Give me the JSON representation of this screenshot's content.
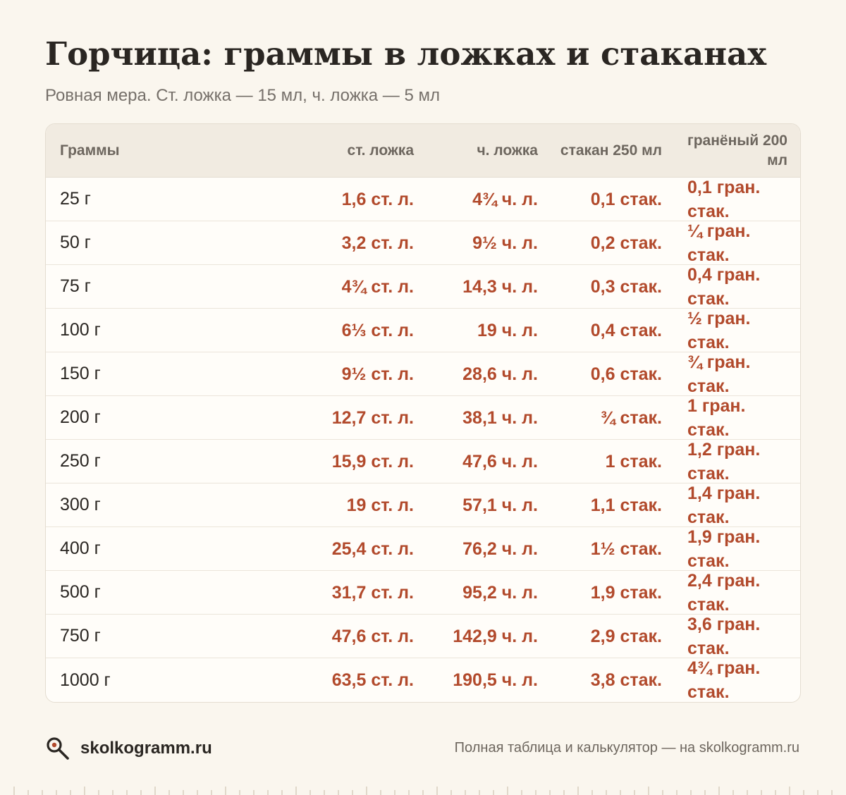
{
  "title": "Горчица: граммы в ложках и стаканах",
  "subtitle": "Ровная мера. Ст. ложка — 15 мл, ч. ложка — 5 мл",
  "table": {
    "headers": [
      "Граммы",
      "ст. ложка",
      "ч. ложка",
      "стакан 250 мл",
      "гранёный 200 мл"
    ],
    "rows": [
      [
        "25 г",
        "1,6 ст. л.",
        "4¾ ч. л.",
        "0,1 стак.",
        "0,1 гран. стак."
      ],
      [
        "50 г",
        "3,2 ст. л.",
        "9½ ч. л.",
        "0,2 стак.",
        "¼ гран. стак."
      ],
      [
        "75 г",
        "4¾ ст. л.",
        "14,3 ч. л.",
        "0,3 стак.",
        "0,4 гран. стак."
      ],
      [
        "100 г",
        "6⅓ ст. л.",
        "19 ч. л.",
        "0,4 стак.",
        "½ гран. стак."
      ],
      [
        "150 г",
        "9½ ст. л.",
        "28,6 ч. л.",
        "0,6 стак.",
        "¾ гран. стак."
      ],
      [
        "200 г",
        "12,7 ст. л.",
        "38,1 ч. л.",
        "¾ стак.",
        "1 гран. стак."
      ],
      [
        "250 г",
        "15,9 ст. л.",
        "47,6 ч. л.",
        "1 стак.",
        "1,2 гран. стак."
      ],
      [
        "300 г",
        "19 ст. л.",
        "57,1 ч. л.",
        "1,1 стак.",
        "1,4 гран. стак."
      ],
      [
        "400 г",
        "25,4 ст. л.",
        "76,2 ч. л.",
        "1½ стак.",
        "1,9 гран. стак."
      ],
      [
        "500 г",
        "31,7 ст. л.",
        "95,2 ч. л.",
        "1,9 стак.",
        "2,4 гран. стак."
      ],
      [
        "750 г",
        "47,6 ст. л.",
        "142,9 ч. л.",
        "2,9 стак.",
        "3,6 гран. стак."
      ],
      [
        "1000 г",
        "63,5 ст. л.",
        "190,5 ч. л.",
        "3,8 стак.",
        "4¾ гран. стак."
      ]
    ]
  },
  "footer": {
    "brand": "skolkogramm.ru",
    "note": "Полная таблица и калькулятор — на skolkogramm.ru",
    "icon": "magnifier-icon"
  },
  "colors": {
    "background": "#faf6ee",
    "accent": "#b24a2c",
    "header_bg": "#f1ebe1"
  }
}
